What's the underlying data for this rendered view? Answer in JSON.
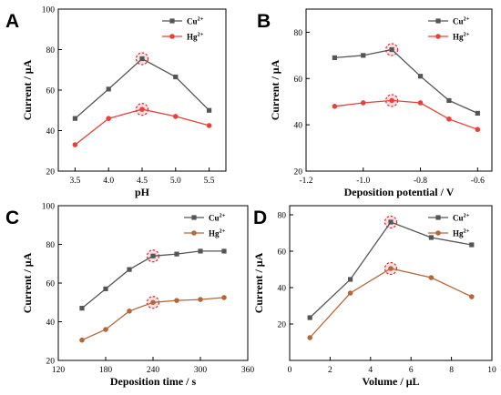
{
  "chart_data": [
    {
      "type": "line",
      "panel_label": "A",
      "xlabel": "pH",
      "ylabel": "Current / μA",
      "xlim": [
        3.25,
        5.75
      ],
      "ylim": [
        20,
        100
      ],
      "xticks": [
        "3.5",
        "4.0",
        "4.5",
        "5.0",
        "5.5"
      ],
      "xtick_values": [
        3.5,
        4.0,
        4.5,
        5.0,
        5.5
      ],
      "yticks": [
        "20",
        "40",
        "60",
        "80",
        "100"
      ],
      "ytick_values": [
        20,
        40,
        60,
        80,
        100
      ],
      "legend_position": "top-right",
      "highlight_x": 4.5,
      "series": [
        {
          "name": "Cu",
          "superscript": "2+",
          "color": "#555555",
          "marker": "square",
          "x": [
            3.5,
            4.0,
            4.5,
            5.0,
            5.5
          ],
          "values": [
            46,
            60.5,
            75.5,
            66.5,
            50
          ]
        },
        {
          "name": "Hg",
          "superscript": "2+",
          "color": "#e8413a",
          "marker": "circle",
          "x": [
            3.5,
            4.0,
            4.5,
            5.0,
            5.5
          ],
          "values": [
            33,
            46,
            50.5,
            47,
            42.5
          ]
        }
      ]
    },
    {
      "type": "line",
      "panel_label": "B",
      "xlabel": "Deposition potential / V",
      "ylabel": "Current / μA",
      "xlim": [
        -1.2,
        -0.55
      ],
      "ylim": [
        20,
        90
      ],
      "xticks": [
        "-1.2",
        "-1.0",
        "-0.8",
        "-0.6"
      ],
      "xtick_values": [
        -1.2,
        -1.0,
        -0.8,
        -0.6
      ],
      "yticks": [
        "20",
        "40",
        "60",
        "80"
      ],
      "ytick_values": [
        20,
        40,
        60,
        80
      ],
      "legend_position": "top-right",
      "highlight_x": -0.9,
      "series": [
        {
          "name": "Cu",
          "superscript": "2+",
          "color": "#555555",
          "marker": "square",
          "x": [
            -1.1,
            -1.0,
            -0.9,
            -0.8,
            -0.7,
            -0.6
          ],
          "values": [
            69,
            70,
            72.5,
            61,
            50.5,
            45
          ]
        },
        {
          "name": "Hg",
          "superscript": "2+",
          "color": "#e8413a",
          "marker": "circle",
          "x": [
            -1.1,
            -1.0,
            -0.9,
            -0.8,
            -0.7,
            -0.6
          ],
          "values": [
            48,
            49.5,
            50.5,
            49.5,
            42.5,
            38
          ]
        }
      ]
    },
    {
      "type": "line",
      "panel_label": "C",
      "xlabel": "Deposition time / s",
      "ylabel": "Current / μA",
      "xlim": [
        120,
        360
      ],
      "ylim": [
        20,
        100
      ],
      "xticks": [
        "120",
        "180",
        "240",
        "300",
        "360"
      ],
      "xtick_values": [
        120,
        180,
        240,
        300,
        360
      ],
      "yticks": [
        "20",
        "40",
        "60",
        "80",
        "100"
      ],
      "ytick_values": [
        20,
        40,
        60,
        80,
        100
      ],
      "legend_position": "top-right",
      "highlight_x": 240,
      "series": [
        {
          "name": "Cu",
          "superscript": "2+",
          "color": "#555555",
          "marker": "square",
          "x": [
            150,
            180,
            210,
            240,
            270,
            300,
            330
          ],
          "values": [
            47,
            57,
            67,
            74,
            75,
            76.5,
            76.5
          ]
        },
        {
          "name": "Hg",
          "superscript": "2+",
          "color": "#b5673a",
          "marker": "circle",
          "x": [
            150,
            180,
            210,
            240,
            270,
            300,
            330
          ],
          "values": [
            30.5,
            36,
            45.5,
            50,
            51,
            51.5,
            52.5
          ]
        }
      ]
    },
    {
      "type": "line",
      "panel_label": "D",
      "xlabel": "Volume / μL",
      "ylabel": "Current / μA",
      "xlim": [
        0,
        10
      ],
      "ylim": [
        0,
        85
      ],
      "xticks": [
        "0",
        "2",
        "4",
        "6",
        "8",
        "10"
      ],
      "xtick_values": [
        0,
        2,
        4,
        6,
        8,
        10
      ],
      "yticks": [
        "20",
        "40",
        "60",
        "80"
      ],
      "ytick_values": [
        20,
        40,
        60,
        80
      ],
      "legend_position": "top-right",
      "highlight_x": 5,
      "series": [
        {
          "name": "Cu",
          "superscript": "2+",
          "color": "#555555",
          "marker": "square",
          "x": [
            1,
            3,
            5,
            7,
            9
          ],
          "values": [
            23.5,
            44.5,
            76,
            67.5,
            63.5
          ]
        },
        {
          "name": "Hg",
          "superscript": "2+",
          "color": "#b5673a",
          "marker": "circle",
          "x": [
            1,
            3,
            5,
            7,
            9
          ],
          "values": [
            12.5,
            37,
            50.5,
            45.5,
            35
          ]
        }
      ]
    }
  ]
}
